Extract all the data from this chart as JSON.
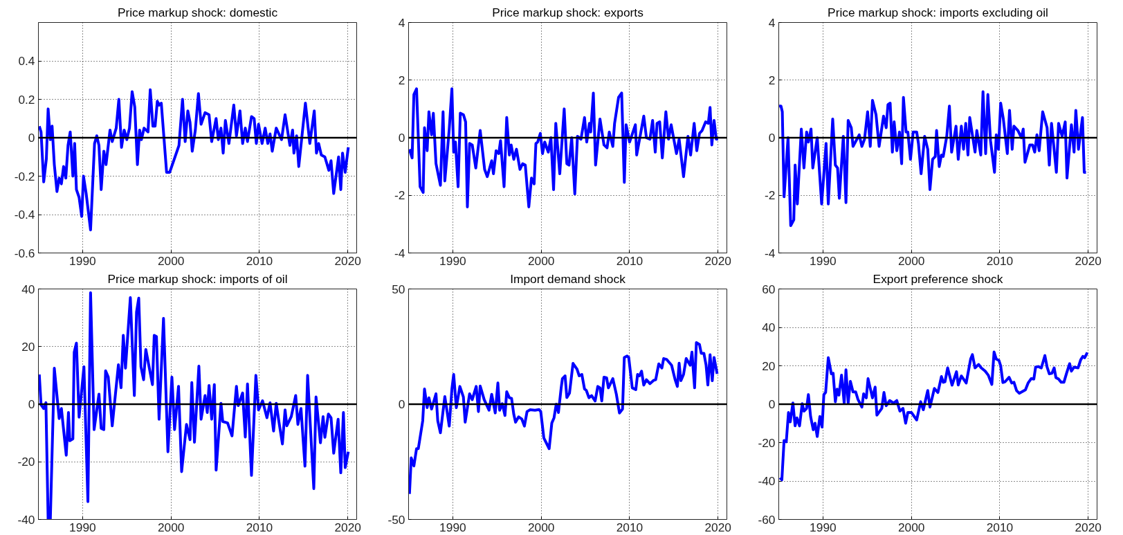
{
  "chart_data": [
    {
      "type": "line",
      "title": "Price markup shock: domestic",
      "xlim": [
        1985,
        2021
      ],
      "xticks": [
        1990,
        2000,
        2010,
        2020
      ],
      "ylim": [
        -0.6,
        0.6
      ],
      "yticks": [
        -0.6,
        -0.4,
        -0.2,
        0,
        0.2,
        0.4
      ],
      "grid": true,
      "ref_lines": [
        {
          "axis": "y",
          "value": 0,
          "color": "#000000"
        }
      ],
      "series": [
        {
          "color": "#0000ff",
          "x": [
            1985.1,
            1985.3,
            1985.6,
            1985.9,
            1986.1,
            1986.35,
            1986.55,
            1986.8,
            1987.1,
            1987.35,
            1987.6,
            1987.85,
            1988.1,
            1988.35,
            1988.6,
            1988.9,
            1989.1,
            1989.3,
            1989.6,
            1989.9,
            1990.1,
            1990.4,
            1990.9,
            1991.35,
            1991.6,
            1991.85,
            1992.1,
            1992.4,
            1992.65,
            1993.1,
            1993.35,
            1993.8,
            1994.1,
            1994.4,
            1994.7,
            1995.0,
            1995.3,
            1995.6,
            1995.9,
            1996.2,
            1996.45,
            1996.65,
            1996.95,
            1997.4,
            1997.65,
            1997.95,
            1998.2,
            1998.45,
            1998.65,
            1998.9,
            1999.5,
            1999.85,
            2000.3,
            2000.9,
            2001.3,
            2001.6,
            2001.9,
            2002.15,
            2002.4,
            2002.75,
            2003.1,
            2003.4,
            2003.85,
            2004.3,
            2004.6,
            2005.1,
            2005.35,
            2005.65,
            2005.9,
            2006.15,
            2006.55,
            2007.1,
            2007.4,
            2007.8,
            2008.1,
            2008.4,
            2008.65,
            2009.1,
            2009.4,
            2009.65,
            2009.9,
            2010.3,
            2010.65,
            2010.95,
            2011.2,
            2011.45,
            2011.9,
            2012.5,
            2012.9,
            2013.45,
            2013.75,
            2013.9,
            2014.2,
            2014.45,
            2015.2,
            2015.7,
            2016.2,
            2016.45,
            2016.7,
            2017.0,
            2017.4,
            2017.85,
            2018.1,
            2018.4,
            2018.95,
            2019.2,
            2019.4,
            2019.7,
            2020.05
          ],
          "values": [
            0.06,
            0.03,
            -0.23,
            -0.11,
            0.15,
            -0.01,
            0.06,
            -0.14,
            -0.28,
            -0.21,
            -0.24,
            -0.15,
            -0.21,
            -0.04,
            0.03,
            -0.2,
            -0.03,
            -0.27,
            -0.31,
            -0.41,
            -0.2,
            -0.29,
            -0.48,
            -0.03,
            0.01,
            -0.04,
            -0.27,
            -0.07,
            -0.14,
            0.04,
            -0.02,
            0.05,
            0.2,
            -0.05,
            0.04,
            -0.01,
            0.05,
            0.24,
            0.16,
            -0.14,
            0.04,
            -0.01,
            0.05,
            0.03,
            0.25,
            0.06,
            0.06,
            0.19,
            0.17,
            0.18,
            -0.18,
            -0.18,
            -0.12,
            -0.04,
            0.2,
            -0.02,
            0.14,
            0.08,
            -0.07,
            0.04,
            0.23,
            0.07,
            0.13,
            0.12,
            -0.02,
            0.1,
            -0.01,
            0.05,
            -0.08,
            0.09,
            -0.03,
            0.17,
            0.01,
            0.14,
            -0.03,
            0.05,
            -0.02,
            0.11,
            0.1,
            -0.03,
            0.07,
            -0.03,
            0.05,
            -0.03,
            0.02,
            -0.07,
            0.05,
            -0.01,
            0.12,
            -0.04,
            0.04,
            -0.08,
            0.01,
            -0.15,
            0.18,
            -0.03,
            0.14,
            -0.08,
            -0.03,
            -0.09,
            -0.1,
            -0.17,
            -0.12,
            -0.29,
            -0.1,
            -0.27,
            -0.08,
            -0.18,
            -0.05
          ]
        }
      ]
    },
    {
      "type": "line",
      "title": "Price markup shock: exports",
      "xlim": [
        1985,
        2021
      ],
      "xticks": [
        1990,
        2000,
        2010,
        2020
      ],
      "ylim": [
        -4,
        4
      ],
      "yticks": [
        -4,
        -2,
        0,
        2,
        4
      ],
      "grid": true,
      "ref_lines": [
        {
          "axis": "y",
          "value": 0,
          "color": "#000000"
        }
      ],
      "series": [
        {
          "color": "#0000ff",
          "x": [
            1985.1,
            1985.4,
            1985.6,
            1985.9,
            1986.3,
            1986.65,
            1986.8,
            1987.1,
            1987.3,
            1987.6,
            1987.8,
            1988.1,
            1988.6,
            1988.9,
            1989.1,
            1989.6,
            1989.9,
            1990.1,
            1990.3,
            1990.6,
            1990.85,
            1991.2,
            1991.45,
            1991.65,
            1991.9,
            1992.2,
            1992.6,
            1993.1,
            1993.6,
            1993.9,
            1994.4,
            1994.6,
            1994.9,
            1995.2,
            1995.4,
            1995.8,
            1996.1,
            1996.4,
            1996.6,
            1996.9,
            1997.2,
            1997.6,
            1997.9,
            1998.2,
            1998.6,
            1998.9,
            1999.2,
            1999.4,
            1999.6,
            1999.9,
            2000.15,
            2000.4,
            2000.8,
            2001.1,
            2001.4,
            2001.65,
            2002.1,
            2002.6,
            2002.9,
            2003.15,
            2003.45,
            2003.8,
            2004.1,
            2004.5,
            2004.9,
            2005.15,
            2005.45,
            2005.6,
            2005.9,
            2006.15,
            2006.65,
            2007.1,
            2007.45,
            2007.7,
            2008.1,
            2008.3,
            2008.75,
            2009.1,
            2009.4,
            2009.6,
            2010.0,
            2010.65,
            2010.8,
            2011.6,
            2011.9,
            2012.3,
            2012.6,
            2012.9,
            2013.1,
            2013.4,
            2013.7,
            2014.1,
            2014.4,
            2014.7,
            2015.3,
            2015.6,
            2016.1,
            2016.6,
            2016.9,
            2017.3,
            2017.6,
            2017.9,
            2018.2,
            2018.6,
            2018.9,
            2019.1,
            2019.3,
            2019.55,
            2019.8,
            2020.0
          ],
          "values": [
            -0.4,
            -0.7,
            1.5,
            1.7,
            -1.7,
            -1.9,
            0.35,
            -0.45,
            0.9,
            0.1,
            0.85,
            -0.9,
            -1.65,
            0.9,
            -1.5,
            0.3,
            1.7,
            -0.5,
            -0.15,
            -1.7,
            0.85,
            0.8,
            0.55,
            -2.4,
            -0.2,
            -0.25,
            -1.05,
            0.25,
            -1.1,
            -1.35,
            -0.8,
            -1.25,
            -0.45,
            -0.55,
            -0.1,
            -1.7,
            0.7,
            -0.6,
            -0.25,
            -0.75,
            -0.4,
            -1.1,
            -0.9,
            -0.95,
            -2.4,
            -1.4,
            -1.6,
            -0.2,
            -0.15,
            0.15,
            -0.55,
            -0.15,
            -0.5,
            0,
            -1.8,
            0.5,
            -1.25,
            1.0,
            -0.9,
            -0.95,
            0,
            -1.95,
            0.05,
            -0.05,
            0.7,
            -0.15,
            0.5,
            0.2,
            1.55,
            -0.95,
            0.65,
            -0.25,
            -0.35,
            0.2,
            -0.3,
            0.5,
            1.4,
            1.55,
            -1.55,
            0.45,
            -0.15,
            0.45,
            -0.6,
            0.75,
            0,
            -0.05,
            0.6,
            -0.5,
            0.5,
            0.55,
            -0.7,
            0.9,
            -0.05,
            0.45,
            -0.55,
            -0.05,
            -1.35,
            0.05,
            -0.6,
            0.5,
            -0.45,
            0.15,
            0.25,
            0.55,
            0.5,
            1.05,
            -0.25,
            0.6,
            -0.05,
            -0.05
          ]
        }
      ]
    },
    {
      "type": "line",
      "title": "Price markup shock: imports excluding oil",
      "xlim": [
        1985,
        2021
      ],
      "xticks": [
        1990,
        2000,
        2010,
        2020
      ],
      "ylim": [
        -4,
        4
      ],
      "yticks": [
        -4,
        -2,
        0,
        2,
        4
      ],
      "grid": true,
      "ref_lines": [
        {
          "axis": "y",
          "value": 0,
          "color": "#000000"
        }
      ],
      "series": [
        {
          "color": "#0000ff",
          "x": [
            1985.05,
            1985.25,
            1985.4,
            1985.6,
            1986.05,
            1986.35,
            1986.7,
            1986.85,
            1987.1,
            1987.55,
            1987.85,
            1988.15,
            1988.35,
            1988.65,
            1988.85,
            1989.35,
            1989.85,
            1990.35,
            1990.6,
            1991.1,
            1991.4,
            1991.65,
            1991.85,
            1992.3,
            1992.6,
            1992.85,
            1993.2,
            1993.4,
            1994.1,
            1994.4,
            1994.7,
            1995.05,
            1995.35,
            1995.6,
            1996.0,
            1996.35,
            1996.85,
            1997.15,
            1997.35,
            1997.6,
            1997.85,
            1998.05,
            1998.35,
            1998.65,
            1998.9,
            1999.1,
            1999.4,
            1999.6,
            1999.9,
            2000.2,
            2000.6,
            2000.8,
            2001.1,
            2001.5,
            2001.85,
            2002.1,
            2002.4,
            2002.7,
            2002.85,
            2003.15,
            2003.4,
            2003.6,
            2004.0,
            2004.3,
            2004.55,
            2005.05,
            2005.3,
            2005.65,
            2005.9,
            2006.15,
            2006.4,
            2006.6,
            2007.2,
            2007.4,
            2007.85,
            2008.1,
            2008.4,
            2008.65,
            2008.95,
            2009.4,
            2009.6,
            2009.85,
            2010.1,
            2010.4,
            2010.85,
            2011.1,
            2011.4,
            2011.6,
            2012.05,
            2012.45,
            2012.65,
            2012.85,
            2013.4,
            2013.7,
            2013.95,
            2014.2,
            2014.45,
            2014.85,
            2015.35,
            2015.6,
            2015.85,
            2016.4,
            2016.65,
            2017.05,
            2017.4,
            2017.6,
            2018.1,
            2018.4,
            2018.6,
            2018.9,
            2019.35,
            2019.55,
            2019.75
          ],
          "values": [
            1.1,
            1.1,
            0.9,
            -2.05,
            0,
            -3.05,
            -2.85,
            -0.95,
            -2.3,
            0.3,
            -1.05,
            0.2,
            -0.15,
            0.3,
            -1.05,
            0,
            -2.3,
            -0.2,
            -2.3,
            0.65,
            -0.95,
            -1.05,
            -2.1,
            0.05,
            -2.25,
            0.6,
            0.35,
            -0.3,
            0.1,
            -0.3,
            -0.05,
            0.9,
            -0.3,
            1.3,
            0.8,
            -0.3,
            0.75,
            0.35,
            1.15,
            1.2,
            -0.5,
            0.55,
            -0.45,
            0.2,
            -0.9,
            1.4,
            0.2,
            0.2,
            -0.75,
            0.2,
            0.2,
            -0.2,
            -1.25,
            0.05,
            -0.4,
            -1.8,
            -0.75,
            -0.65,
            0.25,
            -1.0,
            -0.6,
            -0.65,
            0.05,
            1.1,
            -0.5,
            0.4,
            -0.75,
            0.4,
            -0.4,
            0.5,
            -0.6,
            0.7,
            -0.5,
            0.25,
            -0.6,
            1.6,
            -0.55,
            1.5,
            -0.1,
            -1.2,
            0.1,
            -0.4,
            1.2,
            0.65,
            -0.55,
            0.95,
            -0.4,
            0.4,
            0.25,
            0,
            0.3,
            -0.85,
            -0.25,
            -0.25,
            -0.5,
            0.1,
            -0.45,
            0.9,
            0.35,
            -0.95,
            0.5,
            -1.2,
            0.5,
            0.05,
            0.55,
            -1.4,
            0.45,
            -0.5,
            0.95,
            -0.4,
            0.7,
            -1.2,
            -1.2
          ]
        }
      ]
    },
    {
      "type": "line",
      "title": "Price markup shock: imports of oil",
      "xlim": [
        1985,
        2021
      ],
      "xticks": [
        1990,
        2000,
        2010,
        2020
      ],
      "ylim": [
        -40,
        40
      ],
      "yticks": [
        -40,
        -20,
        0,
        20,
        40
      ],
      "grid": true,
      "ref_lines": [
        {
          "axis": "y",
          "value": 0,
          "color": "#000000"
        }
      ],
      "series": [
        {
          "color": "#0000ff",
          "x": [
            1985.1,
            1985.3,
            1985.6,
            1985.85,
            1986.1,
            1986.35,
            1986.8,
            1987.35,
            1987.6,
            1988.15,
            1988.4,
            1988.55,
            1988.9,
            1989.05,
            1989.3,
            1989.6,
            1990.15,
            1990.6,
            1990.9,
            1991.3,
            1991.85,
            1992.1,
            1992.4,
            1992.6,
            1992.9,
            1993.35,
            1994.05,
            1994.35,
            1994.6,
            1994.85,
            1995.4,
            1995.85,
            1996.1,
            1996.35,
            1996.6,
            1996.9,
            1997.15,
            1997.9,
            1998.1,
            1998.35,
            1998.65,
            1999.15,
            1999.65,
            2000.1,
            2000.4,
            2000.85,
            2001.2,
            2001.75,
            2002.15,
            2002.35,
            2002.65,
            2003.15,
            2003.4,
            2003.85,
            2004.1,
            2004.3,
            2004.6,
            2004.9,
            2005.1,
            2005.65,
            2005.85,
            2006.4,
            2006.9,
            2007.4,
            2007.6,
            2008.1,
            2008.4,
            2008.65,
            2009.1,
            2009.6,
            2009.9,
            2010.35,
            2010.85,
            2011.2,
            2011.6,
            2011.9,
            2012.2,
            2012.6,
            2012.9,
            2013.1,
            2013.6,
            2014.1,
            2014.35,
            2014.7,
            2015.15,
            2015.45,
            2015.7,
            2016.15,
            2016.4,
            2016.9,
            2017.2,
            2017.4,
            2017.8,
            2018.1,
            2018.4,
            2018.9,
            2019.2,
            2019.5,
            2019.7,
            2020.05
          ],
          "values": [
            10.3,
            -0.2,
            -1.5,
            0.5,
            -40,
            -40,
            12.5,
            -5,
            -1.5,
            -17.7,
            -2.9,
            -12.7,
            -12,
            18,
            21.2,
            -4.5,
            13,
            -33.8,
            38.7,
            -8.8,
            3.5,
            -8.4,
            -8.8,
            11.6,
            9.4,
            -7.5,
            13.7,
            5.7,
            23.9,
            12.5,
            37,
            3,
            32,
            36.8,
            13,
            8.5,
            19,
            6.8,
            23.9,
            23.5,
            -5.2,
            29.8,
            -16.5,
            9.4,
            -8.8,
            6.2,
            -23.4,
            -7,
            -12.3,
            7.5,
            -13.2,
            13.2,
            -5.2,
            3,
            -2.9,
            6.5,
            -5.2,
            6.8,
            -22.9,
            0.3,
            -6,
            -6.5,
            -11,
            6.2,
            -0.5,
            3.9,
            -11.4,
            7,
            -24.7,
            10,
            -2,
            1.2,
            -4.7,
            0.5,
            -9.3,
            0.3,
            -6,
            -13.8,
            -2,
            -7.5,
            -4.3,
            3,
            -7,
            -1.5,
            -21.5,
            10,
            -4.3,
            -29.3,
            2.5,
            -13.4,
            -4.3,
            -11.5,
            -3.4,
            -4.7,
            -17,
            -5.2,
            -23.8,
            -2.9,
            -22,
            -16.5
          ]
        }
      ]
    },
    {
      "type": "line",
      "title": "Import demand shock",
      "xlim": [
        1985,
        2021
      ],
      "xticks": [
        1990,
        2000,
        2010,
        2020
      ],
      "ylim": [
        -50,
        50
      ],
      "yticks": [
        -50,
        0,
        50
      ],
      "grid": true,
      "ref_lines": [
        {
          "axis": "y",
          "value": 0,
          "color": "#000000"
        }
      ],
      "series": [
        {
          "color": "#0000ff",
          "x": [
            1985.1,
            1985.3,
            1985.6,
            1985.9,
            1986.1,
            1986.6,
            1986.8,
            1987.1,
            1987.3,
            1987.6,
            1988.1,
            1988.3,
            1988.6,
            1989.1,
            1989.6,
            1989.9,
            1990.1,
            1990.4,
            1990.8,
            1991.2,
            1991.4,
            1991.9,
            1992.2,
            1992.65,
            1992.9,
            1993.1,
            1993.55,
            1994.1,
            1994.4,
            1994.8,
            1995.1,
            1995.3,
            1995.6,
            1995.9,
            1996.1,
            1996.4,
            1996.65,
            1996.9,
            1997.1,
            1997.45,
            1997.8,
            1998.1,
            1998.4,
            1998.75,
            1999.3,
            1999.75,
            1999.95,
            2000.3,
            2000.9,
            2001.2,
            2001.45,
            2001.7,
            2001.95,
            2002.25,
            2002.4,
            2002.7,
            2002.9,
            2003.2,
            2003.6,
            2004.05,
            2004.3,
            2004.6,
            2004.9,
            2005.1,
            2005.4,
            2005.7,
            2006.1,
            2006.4,
            2006.65,
            2006.85,
            2007.1,
            2007.4,
            2007.6,
            2008.1,
            2008.5,
            2008.85,
            2009.2,
            2009.4,
            2009.7,
            2009.9,
            2010.3,
            2010.7,
            2010.9,
            2011.1,
            2011.35,
            2011.6,
            2011.9,
            2012.3,
            2012.7,
            2012.95,
            2013.3,
            2013.65,
            2013.85,
            2014.2,
            2014.5,
            2014.75,
            2015.15,
            2015.4,
            2015.6,
            2015.8,
            2016.1,
            2016.4,
            2016.85,
            2017.05,
            2017.35,
            2017.55,
            2017.9,
            2018.1,
            2018.4,
            2018.65,
            2018.85,
            2019.1,
            2019.35,
            2019.55,
            2019.9
          ],
          "values": [
            -38.9,
            -23.3,
            -26.8,
            -19.3,
            -19.3,
            -7.2,
            6.6,
            -1.5,
            2.8,
            -2.1,
            4.5,
            -7.2,
            -12.4,
            3.3,
            -9.5,
            6.6,
            12.9,
            -1.5,
            7.7,
            3.1,
            -7.8,
            4.5,
            2,
            7.7,
            -3.2,
            7.9,
            2,
            -2.6,
            4.3,
            -3.8,
            9.2,
            -2.6,
            0.2,
            -4.9,
            5.4,
            2.8,
            2.5,
            -4.4,
            -7.8,
            -5.5,
            -6.4,
            -9.5,
            -3.2,
            -2.4,
            -2.6,
            -2.3,
            -3.2,
            -14.7,
            -19.3,
            -8.2,
            -5.9,
            0,
            -3.6,
            6.8,
            11.1,
            12.3,
            2.9,
            4.8,
            17.7,
            15.2,
            12.3,
            12.9,
            6.6,
            6,
            2.8,
            3.7,
            1.4,
            7.7,
            7.1,
            1.4,
            11.7,
            11.4,
            7.1,
            11.1,
            4.3,
            -3.8,
            -2.1,
            20.3,
            20.9,
            20.3,
            7.1,
            6.3,
            12.9,
            12.3,
            14.3,
            8.3,
            10.6,
            8.9,
            10.3,
            10.6,
            17.5,
            15.7,
            19.8,
            19.4,
            18,
            16.9,
            10.6,
            7.7,
            17.8,
            10.2,
            12.9,
            19.8,
            16.9,
            22.6,
            7.1,
            26.7,
            25.9,
            22.1,
            22.1,
            16.9,
            8.3,
            21.5,
            10.2,
            20.3,
            13.2
          ]
        }
      ]
    },
    {
      "type": "line",
      "title": "Export preference shock",
      "xlim": [
        1985,
        2021
      ],
      "xticks": [
        1990,
        2000,
        2010,
        2020
      ],
      "ylim": [
        -60,
        60
      ],
      "yticks": [
        -60,
        -40,
        -20,
        0,
        20,
        40,
        60
      ],
      "grid": true,
      "ref_lines": [
        {
          "axis": "y",
          "value": 0,
          "color": "#000000"
        }
      ],
      "series": [
        {
          "color": "#0000ff",
          "x": [
            1985.15,
            1985.35,
            1985.6,
            1985.85,
            1986.1,
            1986.3,
            1986.6,
            1986.85,
            1987.05,
            1987.35,
            1987.65,
            1987.85,
            1988.15,
            1988.35,
            1988.6,
            1988.9,
            1989.1,
            1989.35,
            1989.65,
            1989.9,
            1990.1,
            1990.3,
            1990.6,
            1990.95,
            1991.15,
            1991.4,
            1991.6,
            1991.8,
            1992.1,
            1992.4,
            1992.6,
            1992.85,
            1993.1,
            1993.4,
            1993.7,
            1993.95,
            1994.4,
            1994.6,
            1994.9,
            1995.1,
            1995.6,
            1995.9,
            1996.1,
            1996.65,
            1996.9,
            1997.15,
            1997.55,
            1998.0,
            1998.35,
            1998.7,
            1999.05,
            1999.35,
            1999.6,
            2000.0,
            2000.6,
            2001.05,
            2001.35,
            2001.85,
            2002.1,
            2002.6,
            2003.0,
            2003.4,
            2003.6,
            2003.8,
            2004.1,
            2004.6,
            2005.1,
            2005.3,
            2005.65,
            2006.2,
            2006.7,
            2006.9,
            2007.2,
            2007.6,
            2007.9,
            2008.35,
            2008.7,
            2009.1,
            2009.35,
            2009.6,
            2009.9,
            2010.1,
            2010.35,
            2010.6,
            2011.05,
            2011.35,
            2011.6,
            2011.9,
            2012.2,
            2012.9,
            2013.2,
            2013.55,
            2013.85,
            2014.05,
            2014.35,
            2014.7,
            2015.1,
            2015.35,
            2015.6,
            2015.9,
            2016.15,
            2016.35,
            2016.65,
            2016.95,
            2017.25,
            2017.55,
            2017.9,
            2018.1,
            2018.4,
            2018.85,
            2019.15,
            2019.4,
            2019.6,
            2019.9
          ],
          "values": [
            -38.3,
            -39.4,
            -18.9,
            -19.6,
            -4.3,
            -9.2,
            0.6,
            -11.3,
            -7.1,
            -11.3,
            0.3,
            -3.6,
            -2.2,
            5,
            -6.4,
            -13.3,
            -9.9,
            -16.8,
            -6.4,
            -11.9,
            5,
            6.1,
            24.2,
            15.8,
            16.1,
            1.3,
            7.8,
            4.7,
            15.1,
            0.6,
            17.9,
            0.6,
            11.9,
            6.4,
            6.4,
            2.6,
            -1.5,
            5.4,
            3.3,
            13.3,
            3.3,
            8.9,
            -5.7,
            -2.2,
            6.1,
            -0.8,
            1.9,
            0.6,
            1.9,
            -3.6,
            -2.2,
            -9.9,
            -4.3,
            -4.3,
            -8.2,
            1.3,
            -2.9,
            7.1,
            -1.5,
            8.2,
            6.1,
            14.4,
            11.4,
            11.7,
            18.9,
            9.9,
            16.9,
            10,
            14.7,
            11,
            23.5,
            25.8,
            18.9,
            20.7,
            18.9,
            17.2,
            15.1,
            10.3,
            27.2,
            23.5,
            22.8,
            20,
            11.3,
            11.7,
            14,
            11,
            11.4,
            7.1,
            5.7,
            7.5,
            11,
            13.3,
            13.1,
            19.3,
            19.6,
            18.9,
            25.3,
            19.3,
            15.8,
            16.1,
            18.9,
            13.8,
            13.1,
            11.4,
            11.4,
            16.1,
            21.1,
            17.2,
            19.3,
            18.9,
            23.1,
            24.9,
            24.2,
            26.9
          ]
        }
      ]
    }
  ]
}
